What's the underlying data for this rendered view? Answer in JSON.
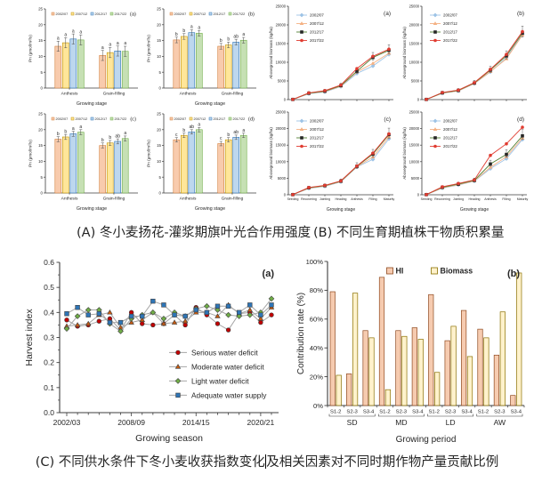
{
  "captions": {
    "a": "(A) 冬小麦扬花-灌浆期旗叶光合作用强度",
    "b": "(B) 不同生育期植株干物质积累量",
    "c_before_caret": "(C) 不同供水条件下冬小麦收获指数变化",
    "c_after_caret": "及相关因素对不同时期作物产量贡献比例"
  },
  "colors": {
    "axis": "#3d3d3d",
    "harvest_line": "#A6A6A6",
    "error_bar": "#4d4d4d"
  },
  "chart_data": [
    {
      "id": "photosynthesis-a",
      "type": "bar",
      "panel_tag": "(a)",
      "ylabel": "Pn (μmol/m²/s)",
      "xlabel": "Growing stage",
      "ylim": [
        0,
        25
      ],
      "yticks": [
        0,
        5,
        10,
        15,
        20,
        25
      ],
      "ytick_labels": [
        "0",
        "5",
        "10",
        "15",
        "20",
        "25"
      ],
      "categories": [
        "Anthesis",
        "Grain-filling"
      ],
      "err": 1.6,
      "series": [
        {
          "name": "2002/07",
          "fill": "#F8CBAD",
          "stroke": "#D4813F",
          "values": [
            13.2,
            10.3
          ],
          "letters": [
            "a",
            "a"
          ]
        },
        {
          "name": "2007/12",
          "fill": "#FFE699",
          "stroke": "#BF9000",
          "values": [
            14.3,
            11.2
          ],
          "letters": [
            "a",
            "a"
          ]
        },
        {
          "name": "2012/17",
          "fill": "#BDD7EE",
          "stroke": "#2E75B6",
          "values": [
            15.5,
            11.7
          ],
          "letters": [
            "a",
            "a"
          ]
        },
        {
          "name": "2017/22",
          "fill": "#C6E0B4",
          "stroke": "#70AD47",
          "values": [
            15.2,
            11.6
          ],
          "letters": [
            "a",
            "a"
          ]
        }
      ]
    },
    {
      "id": "photosynthesis-b",
      "type": "bar",
      "panel_tag": "(b)",
      "ylabel": "Pn (μmol/m²/s)",
      "xlabel": "Growing stage",
      "ylim": [
        0,
        25
      ],
      "yticks": [
        0,
        5,
        10,
        15,
        20,
        25
      ],
      "ytick_labels": [
        "0",
        "5",
        "10",
        "15",
        "20",
        "25"
      ],
      "categories": [
        "Anthesis",
        "Grain-filling"
      ],
      "err": 0.9,
      "series": [
        {
          "name": "2002/07",
          "fill": "#F8CBAD",
          "stroke": "#D4813F",
          "values": [
            15.2,
            13.2
          ],
          "letters": [
            "b",
            "b"
          ]
        },
        {
          "name": "2007/12",
          "fill": "#FFE699",
          "stroke": "#BF9000",
          "values": [
            16.3,
            13.6
          ],
          "letters": [
            "b",
            "b"
          ]
        },
        {
          "name": "2012/17",
          "fill": "#BDD7EE",
          "stroke": "#2E75B6",
          "values": [
            17.5,
            14.5
          ],
          "letters": [
            "a",
            "ab"
          ]
        },
        {
          "name": "2017/22",
          "fill": "#C6E0B4",
          "stroke": "#70AD47",
          "values": [
            17.3,
            15.1
          ],
          "letters": [
            "a",
            "a"
          ]
        }
      ]
    },
    {
      "id": "photosynthesis-c",
      "type": "bar",
      "panel_tag": "(c)",
      "ylabel": "Pn (μmol/m²/s)",
      "xlabel": "Growing stage",
      "ylim": [
        0,
        25
      ],
      "yticks": [
        0,
        5,
        10,
        15,
        20,
        25
      ],
      "ytick_labels": [
        "0",
        "5",
        "10",
        "15",
        "20",
        "25"
      ],
      "categories": [
        "Anthesis",
        "Grain-filling"
      ],
      "err": 0.8,
      "series": [
        {
          "name": "2002/07",
          "fill": "#F8CBAD",
          "stroke": "#D4813F",
          "values": [
            17.0,
            15.0
          ],
          "letters": [
            "b",
            "b"
          ]
        },
        {
          "name": "2007/12",
          "fill": "#FFE699",
          "stroke": "#BF9000",
          "values": [
            17.7,
            15.8
          ],
          "letters": [
            "b",
            "b"
          ]
        },
        {
          "name": "2012/17",
          "fill": "#BDD7EE",
          "stroke": "#2E75B6",
          "values": [
            18.7,
            16.3
          ],
          "letters": [
            "a",
            "ab"
          ]
        },
        {
          "name": "2017/22",
          "fill": "#C6E0B4",
          "stroke": "#70AD47",
          "values": [
            19.2,
            17.2
          ],
          "letters": [
            "a",
            "a"
          ]
        }
      ]
    },
    {
      "id": "photosynthesis-d",
      "type": "bar",
      "panel_tag": "(d)",
      "ylabel": "Pn (μmol/m²/s)",
      "xlabel": "Growing stage",
      "ylim": [
        0,
        25
      ],
      "yticks": [
        0,
        5,
        10,
        15,
        20,
        25
      ],
      "ytick_labels": [
        "0",
        "5",
        "10",
        "15",
        "20",
        "25"
      ],
      "categories": [
        "Anthesis",
        "Grain-filling"
      ],
      "err": 0.7,
      "series": [
        {
          "name": "2002/07",
          "fill": "#F8CBAD",
          "stroke": "#D4813F",
          "values": [
            16.8,
            15.6
          ],
          "letters": [
            "c",
            "c"
          ]
        },
        {
          "name": "2007/12",
          "fill": "#FFE699",
          "stroke": "#BF9000",
          "values": [
            18.2,
            16.8
          ],
          "letters": [
            "b",
            "b"
          ]
        },
        {
          "name": "2012/17",
          "fill": "#BDD7EE",
          "stroke": "#2E75B6",
          "values": [
            19.3,
            17.6
          ],
          "letters": [
            "ab",
            "ab"
          ]
        },
        {
          "name": "2017/22",
          "fill": "#C6E0B4",
          "stroke": "#70AD47",
          "values": [
            20.0,
            18.2
          ],
          "letters": [
            "a",
            "a"
          ]
        }
      ]
    },
    {
      "id": "biomass-a",
      "type": "line-mini",
      "panel_tag": "(a)",
      "ylabel": "Aboveground biomass (kg/ha)",
      "xlabel": "Growing stage",
      "ylim": [
        0,
        25000
      ],
      "yticks": [
        0,
        5000,
        10000,
        15000,
        20000,
        25000
      ],
      "ytick_labels": [
        "0",
        "5000",
        "10000",
        "15000",
        "20000",
        "25000"
      ],
      "x": [
        "Seeding",
        "Recovering",
        "Jointing",
        "Heading",
        "Anthesis",
        "Filling",
        "Maturity"
      ],
      "show_x_labels": false,
      "series": [
        {
          "name": "2002/07",
          "color": "#9DC3E6",
          "marker": "diamond",
          "values": [
            50,
            1550,
            2050,
            3500,
            7000,
            9000,
            12100
          ]
        },
        {
          "name": "2007/12",
          "color": "#F4B183",
          "marker": "triangle",
          "values": [
            50,
            1650,
            2150,
            3600,
            7400,
            9700,
            12400
          ]
        },
        {
          "name": "2012/17",
          "color": "#548235",
          "marker": "square",
          "marker_color": "#262626",
          "values": [
            50,
            1700,
            2250,
            3750,
            7600,
            11300,
            13200
          ]
        },
        {
          "name": "2017/22",
          "color": "#E03C31",
          "marker": "circle",
          "values": [
            50,
            1800,
            2400,
            3900,
            8300,
            11600,
            13500
          ]
        }
      ]
    },
    {
      "id": "biomass-b",
      "type": "line-mini",
      "panel_tag": "(b)",
      "ylabel": "Aboveground biomass (kg/ha)",
      "xlabel": "Growing stage",
      "ylim": [
        0,
        25000
      ],
      "yticks": [
        0,
        5000,
        10000,
        15000,
        20000,
        25000
      ],
      "ytick_labels": [
        "0",
        "5000",
        "10000",
        "15000",
        "20000",
        "25000"
      ],
      "x": [
        "Seeding",
        "Recovering",
        "Jointing",
        "Heading",
        "Anthesis",
        "Filling",
        "Maturity"
      ],
      "show_x_labels": false,
      "series": [
        {
          "name": "2002/07",
          "color": "#9DC3E6",
          "marker": "diamond",
          "values": [
            50,
            1700,
            2300,
            4300,
            7400,
            11200,
            17500
          ]
        },
        {
          "name": "2007/12",
          "color": "#F4B183",
          "marker": "triangle",
          "values": [
            50,
            1750,
            2350,
            4350,
            7500,
            10900,
            17300
          ]
        },
        {
          "name": "2012/17",
          "color": "#548235",
          "marker": "square",
          "marker_color": "#262626",
          "values": [
            50,
            1800,
            2450,
            4450,
            7900,
            11700,
            17800
          ]
        },
        {
          "name": "2017/22",
          "color": "#E03C31",
          "marker": "circle",
          "values": [
            50,
            1900,
            2550,
            4550,
            8100,
            12100,
            18200
          ]
        }
      ]
    },
    {
      "id": "biomass-c",
      "type": "line-mini",
      "panel_tag": "(c)",
      "ylabel": "Aboveground biomass (kg/ha)",
      "xlabel": "Growing stage",
      "ylim": [
        0,
        25000
      ],
      "yticks": [
        0,
        5000,
        10000,
        15000,
        20000,
        25000
      ],
      "ytick_labels": [
        "0",
        "5000",
        "10000",
        "15000",
        "20000",
        "25000"
      ],
      "x": [
        "Seeding",
        "Recovering",
        "Jointing",
        "Heading",
        "Anthesis",
        "Filling",
        "Maturity"
      ],
      "show_x_labels": true,
      "series": [
        {
          "name": "2002/07",
          "color": "#9DC3E6",
          "marker": "diamond",
          "values": [
            50,
            1900,
            2550,
            3900,
            8400,
            10700,
            16900
          ]
        },
        {
          "name": "2007/12",
          "color": "#F4B183",
          "marker": "triangle",
          "values": [
            50,
            2000,
            2650,
            4000,
            8500,
            11400,
            17500
          ]
        },
        {
          "name": "2012/17",
          "color": "#548235",
          "marker": "square",
          "marker_color": "#262626",
          "values": [
            50,
            2100,
            2750,
            4100,
            8600,
            12300,
            18200
          ]
        },
        {
          "name": "2017/22",
          "color": "#E03C31",
          "marker": "circle",
          "values": [
            50,
            2200,
            2850,
            4200,
            8700,
            12600,
            18400
          ]
        }
      ]
    },
    {
      "id": "biomass-d",
      "type": "line-mini",
      "panel_tag": "(d)",
      "ylabel": "Aboveground biomass (kg/ha)",
      "xlabel": "Growing stage",
      "ylim": [
        0,
        25000
      ],
      "yticks": [
        0,
        5000,
        10000,
        15000,
        20000,
        25000
      ],
      "ytick_labels": [
        "0",
        "5000",
        "10000",
        "15000",
        "20000",
        "25000"
      ],
      "x": [
        "Seeding",
        "Recovering",
        "Jointing",
        "Heading",
        "Anthesis",
        "Filling",
        "Maturity"
      ],
      "show_x_labels": true,
      "series": [
        {
          "name": "2002/07",
          "color": "#9DC3E6",
          "marker": "diamond",
          "values": [
            50,
            2000,
            2950,
            4100,
            7900,
            10900,
            16700
          ]
        },
        {
          "name": "2007/12",
          "color": "#F4B183",
          "marker": "triangle",
          "values": [
            50,
            2100,
            3050,
            4200,
            8300,
            11500,
            17100
          ]
        },
        {
          "name": "2012/17",
          "color": "#548235",
          "marker": "square",
          "marker_color": "#262626",
          "values": [
            50,
            2250,
            3200,
            4350,
            9300,
            12200,
            17800
          ]
        },
        {
          "name": "2017/22",
          "color": "#E03C31",
          "marker": "circle",
          "values": [
            50,
            2400,
            3400,
            4500,
            11900,
            15400,
            20400
          ]
        }
      ]
    },
    {
      "id": "harvest-index",
      "type": "line-big",
      "panel_tag": "(a)",
      "ylabel": "Harvest index",
      "xlabel": "Growing season",
      "ylim": [
        0,
        0.6
      ],
      "yticks": [
        0,
        0.1,
        0.2,
        0.3,
        0.4,
        0.5,
        0.6
      ],
      "ytick_labels": [
        "0.0",
        "0.1",
        "0.2",
        "0.3",
        "0.4",
        "0.5",
        "0.6"
      ],
      "x_count": 20,
      "x_tick_labels": [
        {
          "index": 0,
          "label": "2002/03"
        },
        {
          "index": 6,
          "label": "2008/09"
        },
        {
          "index": 12,
          "label": "2014/15"
        },
        {
          "index": 18,
          "label": "2020/21"
        }
      ],
      "series": [
        {
          "name": "Serious water deficit",
          "color": "#C00000",
          "marker": "circle",
          "values": [
            0.37,
            0.345,
            0.35,
            0.365,
            0.375,
            0.33,
            0.4,
            0.355,
            0.35,
            0.355,
            0.39,
            0.35,
            0.42,
            0.39,
            0.355,
            0.33,
            0.395,
            0.4,
            0.36,
            0.39
          ]
        },
        {
          "name": "Moderate water deficit",
          "color": "#C55A11",
          "marker": "triangle",
          "values": [
            0.345,
            0.35,
            0.355,
            0.39,
            0.4,
            0.34,
            0.36,
            0.37,
            0.4,
            0.355,
            0.36,
            0.365,
            0.4,
            0.4,
            0.385,
            0.43,
            0.395,
            0.41,
            0.375,
            0.42
          ]
        },
        {
          "name": "Light water deficit",
          "color": "#70AD47",
          "marker": "diamond",
          "values": [
            0.335,
            0.385,
            0.41,
            0.41,
            0.355,
            0.325,
            0.375,
            0.39,
            0.4,
            0.375,
            0.4,
            0.385,
            0.415,
            0.425,
            0.41,
            0.39,
            0.385,
            0.39,
            0.4,
            0.455
          ]
        },
        {
          "name": "Adequate water supply",
          "color": "#2E75B6",
          "marker": "square",
          "values": [
            0.395,
            0.42,
            0.39,
            0.395,
            0.36,
            0.36,
            0.385,
            0.385,
            0.445,
            0.43,
            0.39,
            0.385,
            0.41,
            0.4,
            0.425,
            0.425,
            0.4,
            0.43,
            0.39,
            0.43
          ]
        }
      ]
    },
    {
      "id": "contribution-rate",
      "type": "bar-grouped",
      "panel_tag": "(b)",
      "ylabel": "Contribution rate (%)",
      "xlabel": "Growing period",
      "ylim": [
        0,
        100
      ],
      "yticks": [
        0,
        20,
        40,
        60,
        80,
        100
      ],
      "ytick_labels": [
        "0%",
        "20%",
        "40%",
        "60%",
        "80%",
        "100%"
      ],
      "sub_labels": [
        "S1-2",
        "S2-3",
        "S3-4"
      ],
      "group_labels": [
        "SD",
        "MD",
        "LD",
        "AW"
      ],
      "series": [
        {
          "name": "HI",
          "fill": "#F6CBB0",
          "stroke": "#8F4A20",
          "values": [
            79,
            22,
            52,
            89,
            52,
            54,
            77,
            45,
            66,
            53,
            35,
            7
          ]
        },
        {
          "name": "Biomass",
          "fill": "#FFF2CC",
          "stroke": "#8A7000",
          "values": [
            21,
            78,
            47,
            11,
            48,
            46,
            23,
            55,
            34,
            47,
            65,
            92
          ]
        }
      ]
    }
  ]
}
